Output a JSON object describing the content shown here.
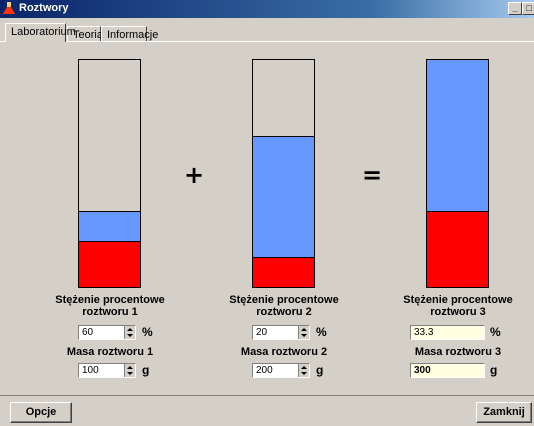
{
  "window": {
    "title": "Roztwory",
    "icon": "flask-icon"
  },
  "tabs": [
    {
      "label": "Laboratorium",
      "active": true
    },
    {
      "label": "Teoria",
      "active": false
    },
    {
      "label": "Informacje",
      "active": false
    }
  ],
  "operators": {
    "plus": "+",
    "equals": "="
  },
  "solution1": {
    "concentration_label": "Stężenie procentowe roztworu 1",
    "concentration": "60",
    "concentration_unit": "%",
    "mass_label": "Masa roztworu 1",
    "mass": "100",
    "mass_unit": "g",
    "fill_fraction": 0.333,
    "solute_fraction": 0.6
  },
  "solution2": {
    "concentration_label": "Stężenie procentowe roztworu 2",
    "concentration": "20",
    "concentration_unit": "%",
    "mass_label": "Masa roztworu 2",
    "mass": "200",
    "mass_unit": "g",
    "fill_fraction": 0.667,
    "solute_fraction": 0.2
  },
  "solution3": {
    "concentration_label": "Stężenie procentowe roztworu 3",
    "concentration": "33.3",
    "concentration_unit": "%",
    "mass_label": "Masa roztworu 3",
    "mass": "300",
    "mass_unit": "g",
    "fill_fraction": 1.0,
    "solute_fraction": 0.333
  },
  "colors": {
    "solute": "#ff0000",
    "solvent": "#6699ff",
    "result_bg": "#ffffe1"
  },
  "buttons": {
    "options": "Opcje",
    "close": "Zamknij"
  }
}
